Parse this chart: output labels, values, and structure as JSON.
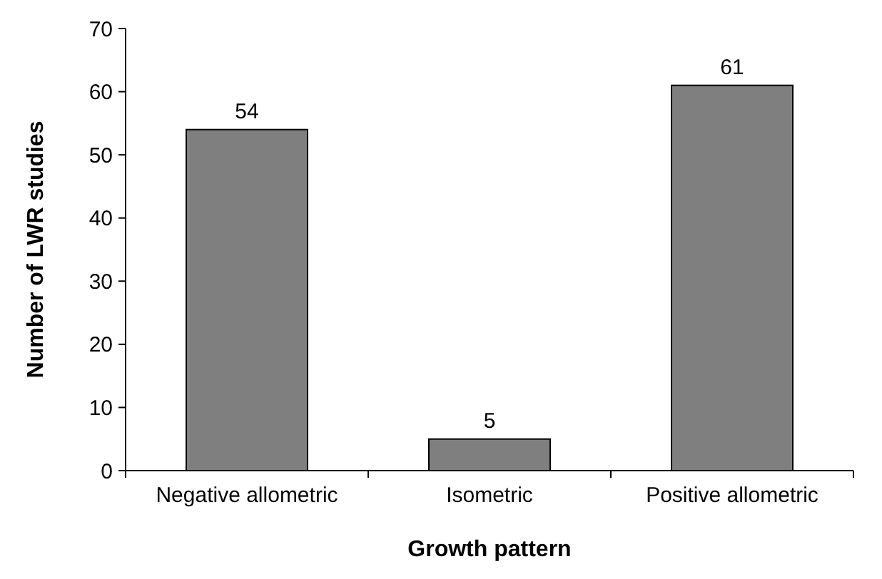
{
  "chart_data": {
    "type": "bar",
    "xlabel": "Growth pattern",
    "ylabel": "Number of LWR studies",
    "categories": [
      "Negative allometric",
      "Isometric",
      "Positive allometric"
    ],
    "values": [
      54,
      5,
      61
    ],
    "color": "#7f7f7f",
    "ylim": [
      0,
      70
    ],
    "yticks": [
      0,
      10,
      20,
      30,
      40,
      50,
      60,
      70
    ],
    "grid": false,
    "data_labels": true
  }
}
